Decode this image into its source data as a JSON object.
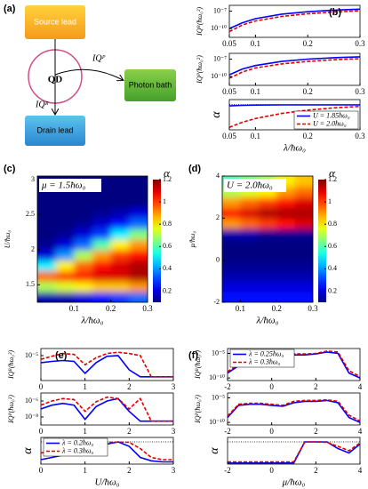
{
  "diagram": {
    "panel": "(a)",
    "source": "Source lead",
    "qd": "QD",
    "bath": "Photon bath",
    "drain": "Drain lead",
    "ip": "IQᴾ",
    "ir": "IQᴿ"
  },
  "chart_data": [
    {
      "type": "line",
      "panel": "(b)",
      "ylabel": "IQᴿ(ħω₀²)",
      "log": true,
      "x": [
        0.05,
        0.075,
        0.1,
        0.15,
        0.2,
        0.25,
        0.3
      ],
      "xlim": [
        0.05,
        0.3
      ],
      "xticks": [
        0.05,
        0.1,
        0.2,
        0.3
      ],
      "ylim": [
        3e-12,
        1e-06
      ],
      "yticks": [
        {
          "value": 1e-10,
          "label": "10⁻¹⁰"
        },
        {
          "value": 1e-07,
          "label": "10⁻⁷"
        }
      ],
      "series": [
        {
          "color": "#0000ff",
          "dash": false,
          "values": [
            1e-10,
            1e-09,
            5e-09,
            3e-08,
            8e-08,
            1.5e-07,
            2.2e-07
          ]
        },
        {
          "color": "#e00000",
          "dash": true,
          "values": [
            3e-11,
            4e-10,
            2e-09,
            1.2e-08,
            3.5e-08,
            7e-08,
            1.1e-07
          ]
        }
      ]
    },
    {
      "type": "line",
      "ylabel": "IQᴾ(ħω₀²)",
      "log": true,
      "x": [
        0.05,
        0.075,
        0.1,
        0.15,
        0.2,
        0.25,
        0.3
      ],
      "xlim": [
        0.05,
        0.3
      ],
      "xticks": [
        0.05,
        0.1,
        0.2,
        0.3
      ],
      "ylim": [
        3e-12,
        1e-06
      ],
      "yticks": [
        {
          "value": 1e-10,
          "label": "10⁻¹⁰"
        },
        {
          "value": 1e-07,
          "label": "10⁻⁷"
        }
      ],
      "series": [
        {
          "color": "#0000ff",
          "dash": false,
          "values": [
            2e-10,
            2e-09,
            8e-09,
            4e-08,
            1e-07,
            1.8e-07,
            2.5e-07
          ]
        },
        {
          "color": "#e00000",
          "dash": true,
          "values": [
            5e-11,
            6e-10,
            3e-09,
            1.5e-08,
            4e-08,
            8e-08,
            1.2e-07
          ]
        }
      ]
    },
    {
      "type": "line",
      "ylabel": "α",
      "xlabel": "λ/ħω₀",
      "log": false,
      "hline": 1,
      "legend": "lower right",
      "x": [
        0.05,
        0.075,
        0.1,
        0.15,
        0.2,
        0.25,
        0.3
      ],
      "xlim": [
        0.05,
        0.3
      ],
      "xticks": [
        0.05,
        0.1,
        0.2,
        0.3
      ],
      "ylim": [
        0,
        1.2
      ],
      "yticks": [],
      "series": [
        {
          "name": "U = 1.85ħω₀",
          "color": "#0000ff",
          "dash": false,
          "values": [
            0.95,
            0.97,
            0.98,
            0.99,
            0.99,
            0.99,
            0.99
          ]
        },
        {
          "name": "U = 2.0ħω₀",
          "color": "#e00000",
          "dash": true,
          "values": [
            0.1,
            0.3,
            0.45,
            0.65,
            0.78,
            0.87,
            0.93
          ]
        }
      ]
    },
    {
      "type": "heatmap",
      "panel": "(c)",
      "annotation": "μ = 1.5ħω₀",
      "xlabel": "λ/ħω₀",
      "ylabel": "U/ħω₀",
      "xlim": [
        0,
        0.3
      ],
      "xticks": [
        0.1,
        0.2,
        0.3
      ],
      "ylim": [
        1.25,
        3.05
      ],
      "yticks": [
        1.5,
        2,
        2.5,
        3
      ],
      "xbins": [
        0,
        0.05,
        0.1,
        0.15,
        0.2,
        0.25,
        0.3
      ],
      "ybins": [
        1.25,
        1.4,
        1.55,
        1.7,
        1.85,
        2.0,
        2.15,
        2.3,
        2.45,
        2.6,
        2.75,
        2.9,
        3.05
      ],
      "z": [
        [
          0.15,
          0.15,
          0.2,
          0.25,
          0.3,
          0.35
        ],
        [
          0.7,
          0.75,
          0.8,
          0.85,
          0.85,
          0.9
        ],
        [
          0.95,
          1.0,
          1.05,
          1.1,
          1.1,
          1.15
        ],
        [
          0.5,
          0.8,
          0.95,
          1.05,
          1.1,
          1.15
        ],
        [
          0.2,
          0.4,
          0.7,
          0.9,
          1.0,
          1.05
        ],
        [
          0.12,
          0.2,
          0.35,
          0.6,
          0.8,
          0.9
        ],
        [
          0.1,
          0.12,
          0.2,
          0.3,
          0.5,
          0.65
        ],
        [
          0.1,
          0.1,
          0.12,
          0.18,
          0.25,
          0.35
        ],
        [
          0.1,
          0.1,
          0.1,
          0.12,
          0.15,
          0.2
        ],
        [
          0.1,
          0.1,
          0.1,
          0.1,
          0.1,
          0.1
        ],
        [
          0.1,
          0.1,
          0.1,
          0.1,
          0.1,
          0.1
        ],
        [
          0.1,
          0.1,
          0.1,
          0.1,
          0.1,
          0.1
        ]
      ],
      "colorbar": {
        "label": "α",
        "lim": [
          0.1,
          1.2
        ],
        "ticks": [
          0.2,
          0.4,
          0.6,
          0.8,
          1,
          1.2
        ]
      }
    },
    {
      "type": "heatmap",
      "panel": "(d)",
      "annotation": "U = 2.0ħω₀",
      "xlabel": "λ/ħω₀",
      "ylabel": "μ/ħω₀",
      "xlim": [
        0.05,
        0.3
      ],
      "xticks": [
        0.1,
        0.2,
        0.3
      ],
      "ylim": [
        -2,
        4
      ],
      "yticks": [
        -2,
        0,
        2,
        4
      ],
      "xbins": [
        0.05,
        0.1,
        0.15,
        0.2,
        0.25,
        0.3
      ],
      "ybins": [
        -2,
        -1.5,
        -1,
        -0.5,
        0,
        0.5,
        1,
        1.5,
        2,
        2.5,
        3,
        3.5,
        4
      ],
      "z": [
        [
          0.25,
          0.25,
          0.25,
          0.25,
          0.25
        ],
        [
          0.2,
          0.2,
          0.2,
          0.2,
          0.2
        ],
        [
          0.15,
          0.15,
          0.15,
          0.15,
          0.15
        ],
        [
          0.12,
          0.12,
          0.12,
          0.12,
          0.12
        ],
        [
          0.1,
          0.1,
          0.1,
          0.1,
          0.1
        ],
        [
          0.1,
          0.1,
          0.1,
          0.1,
          0.1
        ],
        [
          0.15,
          0.15,
          0.12,
          0.12,
          0.12
        ],
        [
          0.9,
          0.95,
          1.0,
          1.05,
          1.1
        ],
        [
          1.05,
          1.1,
          1.15,
          1.15,
          1.15
        ],
        [
          0.9,
          0.95,
          1.0,
          1.05,
          1.1
        ],
        [
          0.7,
          0.75,
          0.8,
          0.9,
          0.95
        ],
        [
          0.6,
          0.65,
          0.7,
          0.8,
          0.85
        ]
      ],
      "colorbar": {
        "label": "α",
        "lim": [
          0.1,
          1.2
        ],
        "ticks": [
          0.2,
          0.4,
          0.6,
          0.8,
          1,
          1.2
        ]
      }
    },
    {
      "type": "line",
      "panel": "(e)",
      "ylabel": "IQᴿ(ħω₀²)",
      "log": true,
      "x": [
        0,
        0.25,
        0.5,
        0.75,
        1,
        1.25,
        1.5,
        1.75,
        2,
        2.25,
        2.5,
        2.75,
        3
      ],
      "xlim": [
        0,
        3
      ],
      "xticks": [
        0,
        1,
        2,
        3
      ],
      "ylim": [
        3e-09,
        0.0001
      ],
      "yticks": [
        {
          "value": 1e-05,
          "label": "10⁻⁵"
        }
      ],
      "series": [
        {
          "color": "#0000ff",
          "dash": false,
          "values": [
            1e-06,
            1.5e-06,
            2e-06,
            1.5e-06,
            3e-08,
            1e-06,
            8e-06,
            1e-05,
            1e-07,
            1e-08,
            1e-08,
            1e-08,
            1e-08
          ]
        },
        {
          "color": "#e00000",
          "dash": true,
          "values": [
            3e-06,
            8e-06,
            2e-05,
            1.5e-05,
            5e-07,
            5e-06,
            2e-05,
            3e-05,
            2e-05,
            1e-05,
            1e-08,
            1e-08,
            1e-08
          ]
        }
      ]
    },
    {
      "type": "line",
      "ylabel": "IQᴾ(ħω₀²)",
      "log": true,
      "x": [
        0,
        0.25,
        0.5,
        0.75,
        1,
        1.25,
        1.5,
        1.75,
        2,
        2.25,
        2.5,
        2.75,
        3
      ],
      "xlim": [
        0,
        3
      ],
      "xticks": [
        0,
        1,
        2,
        3
      ],
      "ylim": [
        1e-09,
        1e-05
      ],
      "yticks": [
        {
          "value": 1e-08,
          "label": "10⁻⁸"
        },
        {
          "value": 1e-06,
          "label": "10⁻⁶"
        }
      ],
      "series": [
        {
          "color": "#0000ff",
          "dash": false,
          "values": [
            1e-07,
            3e-07,
            5e-07,
            3e-07,
            5e-09,
            2e-07,
            1e-06,
            2e-06,
            5e-08,
            3e-09,
            3e-09,
            3e-09,
            3e-09
          ]
        },
        {
          "color": "#e00000",
          "dash": true,
          "values": [
            3e-07,
            1e-06,
            2e-06,
            1.5e-06,
            5e-08,
            8e-07,
            3e-06,
            2e-06,
            1e-07,
            2e-06,
            3e-09,
            3e-09,
            3e-09
          ]
        }
      ]
    },
    {
      "type": "line",
      "ylabel": "α",
      "xlabel": "U/ħω₀",
      "log": false,
      "hline": 1,
      "legend": "upper left",
      "x": [
        0,
        0.25,
        0.5,
        0.75,
        1,
        1.25,
        1.5,
        1.75,
        2,
        2.25,
        2.5,
        2.75,
        3
      ],
      "xlim": [
        0,
        3
      ],
      "xticks": [
        0,
        1,
        2,
        3
      ],
      "ylim": [
        0,
        1.2
      ],
      "yticks": [],
      "series": [
        {
          "name": "λ = 0.2ħω₀",
          "color": "#0000ff",
          "dash": false,
          "values": [
            0.2,
            0.3,
            0.4,
            0.5,
            0.6,
            0.75,
            0.9,
            1.0,
            0.8,
            0.3,
            0.15,
            0.1,
            0.1
          ]
        },
        {
          "name": "λ = 0.3ħω₀",
          "color": "#e00000",
          "dash": true,
          "values": [
            0.5,
            0.6,
            0.7,
            0.8,
            0.9,
            0.95,
            0.98,
            0.99,
            0.98,
            0.7,
            0.3,
            0.2,
            0.2
          ]
        }
      ]
    },
    {
      "type": "line",
      "panel": "(f)",
      "ylabel": "IQᴿ(ħω₀²)",
      "log": true,
      "legend": "upper left",
      "x": [
        -2,
        -1.5,
        -1,
        -0.5,
        0,
        0.5,
        1,
        1.5,
        2,
        2.5,
        3,
        3.5,
        4
      ],
      "xlim": [
        -2,
        4
      ],
      "xticks": [
        -2,
        0,
        2,
        4
      ],
      "ylim": [
        3e-11,
        0.0001
      ],
      "yticks": [
        {
          "value": 1e-10,
          "label": "10⁻¹⁰"
        },
        {
          "value": 1e-05,
          "label": "10⁻⁵"
        }
      ],
      "series": [
        {
          "name": "λ = 0.25ħω₀",
          "color": "#0000ff",
          "dash": false,
          "values": [
            1e-09,
            3e-08,
            3e-07,
            4e-07,
            3e-07,
            2e-07,
            5e-06,
            5e-06,
            8e-06,
            2e-05,
            1e-05,
            1e-09,
            1e-10
          ]
        },
        {
          "name": "λ = 0.3ħω₀",
          "color": "#e00000",
          "dash": true,
          "values": [
            2e-09,
            5e-08,
            5e-07,
            6e-07,
            5e-07,
            3e-07,
            8e-06,
            8e-06,
            1e-05,
            3e-05,
            2e-05,
            3e-09,
            2e-10
          ]
        }
      ]
    },
    {
      "type": "line",
      "ylabel": "IQᴾ(ħω₀²)",
      "log": true,
      "x": [
        -2,
        -1.5,
        -1,
        -0.5,
        0,
        0.5,
        1,
        1.5,
        2,
        2.5,
        3,
        3.5,
        4
      ],
      "xlim": [
        -2,
        4
      ],
      "xticks": [
        -2,
        0,
        2,
        4
      ],
      "ylim": [
        3e-11,
        0.0001
      ],
      "yticks": [
        {
          "value": 1e-10,
          "label": "10⁻¹⁰"
        },
        {
          "value": 1e-05,
          "label": "10⁻⁵"
        }
      ],
      "series": [
        {
          "color": "#0000ff",
          "dash": false,
          "values": [
            1e-09,
            3e-07,
            5e-07,
            5e-07,
            3e-07,
            2e-07,
            1e-06,
            2e-06,
            2e-06,
            3e-06,
            1e-06,
            1e-09,
            1e-10
          ]
        },
        {
          "color": "#e00000",
          "dash": true,
          "values": [
            2e-09,
            5e-07,
            8e-07,
            8e-07,
            5e-07,
            3e-07,
            2e-06,
            3e-06,
            3e-06,
            4e-06,
            2e-06,
            3e-09,
            2e-10
          ]
        }
      ]
    },
    {
      "type": "line",
      "ylabel": "α",
      "xlabel": "μ/ħω₀",
      "log": false,
      "hline": 1,
      "x": [
        -2,
        -1.5,
        -1,
        -0.5,
        0,
        0.5,
        1,
        1.5,
        2,
        2.5,
        3,
        3.5,
        4
      ],
      "xlim": [
        -2,
        4
      ],
      "xticks": [
        -2,
        0,
        2,
        4
      ],
      "ylim": [
        0,
        1.2
      ],
      "yticks": [],
      "series": [
        {
          "color": "#0000ff",
          "dash": false,
          "values": [
            0.05,
            0.05,
            0.05,
            0.05,
            0.05,
            0.05,
            0.05,
            1.0,
            1.0,
            1.0,
            0.7,
            0.5,
            0.9
          ]
        },
        {
          "color": "#e00000",
          "dash": true,
          "values": [
            0.1,
            0.1,
            0.1,
            0.1,
            0.1,
            0.1,
            0.1,
            1.0,
            1.0,
            0.98,
            0.8,
            0.6,
            0.95
          ]
        }
      ]
    }
  ]
}
